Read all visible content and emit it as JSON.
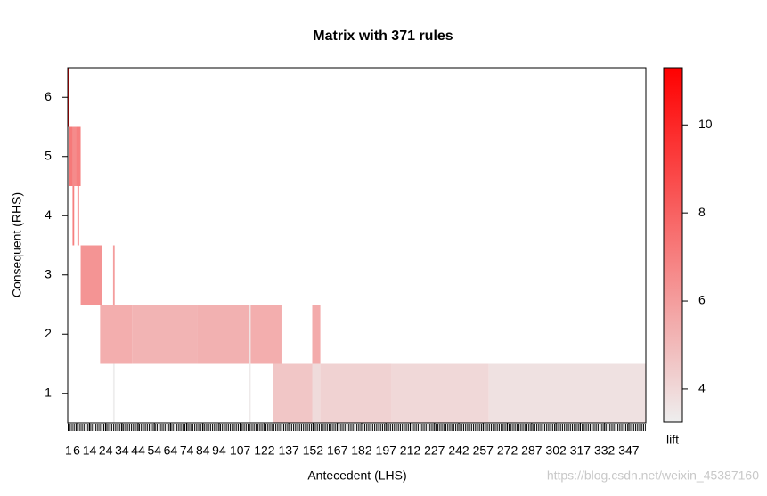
{
  "chart_data": {
    "type": "matrix",
    "title": "Matrix with 371 rules",
    "x_label": "Antecedent (LHS)",
    "y_label": "Consequent (RHS)",
    "color_label": "lift",
    "watermark": "https://blog.csdn.net/weixin_45387160",
    "xlim": [
      0.5,
      357.5
    ],
    "xticks": [
      1,
      6,
      14,
      24,
      34,
      44,
      54,
      64,
      74,
      84,
      94,
      107,
      122,
      137,
      152,
      167,
      182,
      197,
      212,
      227,
      242,
      257,
      272,
      287,
      302,
      317,
      332,
      347
    ],
    "ylim": [
      0.5,
      6.5
    ],
    "yticks": [
      1,
      2,
      3,
      4,
      5,
      6
    ],
    "color_lim": [
      3.25,
      11.3
    ],
    "color_ticks": [
      4,
      6,
      8,
      10
    ],
    "color_low": "#eeeeee",
    "color_high": "#ff0000",
    "cells": [
      {
        "rhs": 6,
        "lhs_from": 1,
        "lhs_to": 1,
        "lift": 11
      },
      {
        "rhs": 5,
        "lhs_from": 2,
        "lhs_to": 3,
        "lift": 7.2
      },
      {
        "rhs": 5,
        "lhs_from": 4,
        "lhs_to": 5,
        "lift": 6.6
      },
      {
        "rhs": 5,
        "lhs_from": 6,
        "lhs_to": 8,
        "lift": 7
      },
      {
        "rhs": 4,
        "lhs_from": 4,
        "lhs_to": 4,
        "lift": 7
      },
      {
        "rhs": 4,
        "lhs_from": 7,
        "lhs_to": 7,
        "lift": 7
      },
      {
        "rhs": 3,
        "lhs_from": 9,
        "lhs_to": 21,
        "lift": 6.3
      },
      {
        "rhs": 3,
        "lhs_from": 29,
        "lhs_to": 29,
        "lift": 6
      },
      {
        "rhs": 2,
        "lhs_from": 21,
        "lhs_to": 40,
        "lift": 5.4
      },
      {
        "rhs": 2,
        "lhs_from": 41,
        "lhs_to": 80,
        "lift": 5.2
      },
      {
        "rhs": 2,
        "lhs_from": 81,
        "lhs_to": 112,
        "lift": 5.3
      },
      {
        "rhs": 2,
        "lhs_from": 113,
        "lhs_to": 113,
        "lift": 3.6
      },
      {
        "rhs": 2,
        "lhs_from": 114,
        "lhs_to": 132,
        "lift": 5.4
      },
      {
        "rhs": 2,
        "lhs_from": 152,
        "lhs_to": 156,
        "lift": 5.5
      },
      {
        "rhs": 1,
        "lhs_from": 29,
        "lhs_to": 29,
        "lift": 3.3
      },
      {
        "rhs": 1,
        "lhs_from": 113,
        "lhs_to": 113,
        "lift": 3.4
      },
      {
        "rhs": 1,
        "lhs_from": 128,
        "lhs_to": 151,
        "lift": 4.6
      },
      {
        "rhs": 1,
        "lhs_from": 152,
        "lhs_to": 156,
        "lift": 3.9
      },
      {
        "rhs": 1,
        "lhs_from": 157,
        "lhs_to": 200,
        "lift": 4.2
      },
      {
        "rhs": 1,
        "lhs_from": 201,
        "lhs_to": 260,
        "lift": 4
      },
      {
        "rhs": 1,
        "lhs_from": 261,
        "lhs_to": 357,
        "lift": 3.7
      }
    ]
  }
}
